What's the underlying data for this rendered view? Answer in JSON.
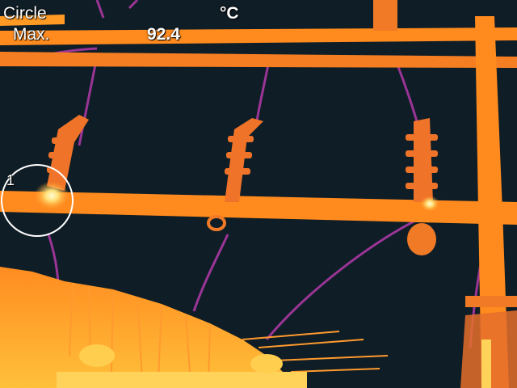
{
  "overlay": {
    "measure_mode_line1": "Circle",
    "measure_mode_line2": "Max.",
    "max_value": "92.4",
    "unit": "°C",
    "marker_index": "1"
  },
  "palette": {
    "background": "#0f1d26",
    "hot_orange": "#ff8a1e",
    "warm_orange": "#f07a26",
    "cable_purple": "#a0379a",
    "hotspot": "#fff6a8",
    "ground_yellow": "#ffc43c"
  }
}
